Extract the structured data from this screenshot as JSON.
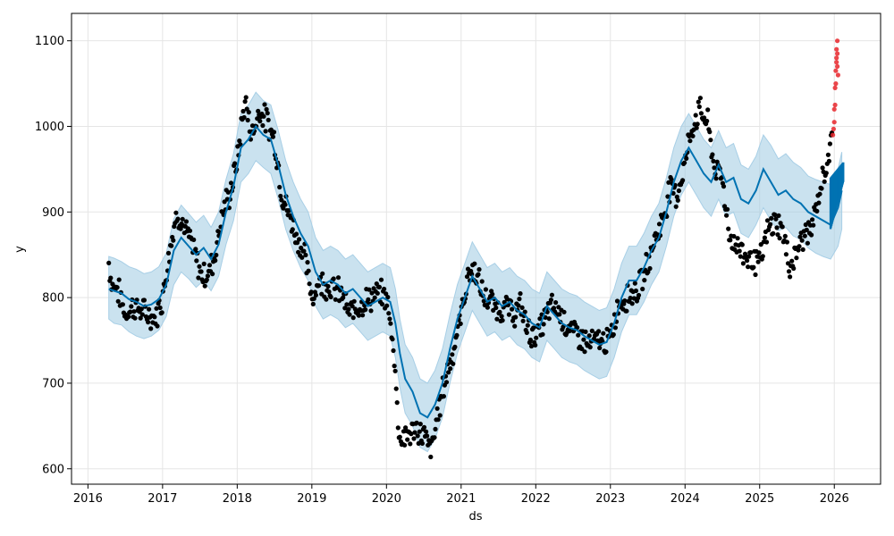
{
  "chart_data": {
    "type": "line",
    "title": "",
    "xlabel": "ds",
    "ylabel": "y",
    "xlim": [
      2015.78,
      2026.62
    ],
    "ylim": [
      582,
      1132
    ],
    "grid": true,
    "x_ticks": [
      2016,
      2017,
      2018,
      2019,
      2020,
      2021,
      2022,
      2023,
      2024,
      2025,
      2026
    ],
    "x_tick_labels": [
      "2016",
      "2017",
      "2018",
      "2019",
      "2020",
      "2021",
      "2022",
      "2023",
      "2024",
      "2025",
      "2026"
    ],
    "y_ticks": [
      600,
      700,
      800,
      900,
      1000,
      1100
    ],
    "y_tick_labels": [
      "600",
      "700",
      "800",
      "900",
      "1000",
      "1100"
    ],
    "colors": {
      "forecast_line": "#0072B2",
      "uncertainty_band": "#9ecae1",
      "observed_points": "#000000",
      "outlier_points": "#e8262b"
    },
    "forecast": {
      "x": [
        2016.28,
        2016.35,
        2016.45,
        2016.55,
        2016.65,
        2016.75,
        2016.85,
        2016.95,
        2017.05,
        2017.15,
        2017.25,
        2017.35,
        2017.45,
        2017.55,
        2017.65,
        2017.75,
        2017.85,
        2017.95,
        2018.05,
        2018.15,
        2018.25,
        2018.35,
        2018.45,
        2018.55,
        2018.65,
        2018.75,
        2018.85,
        2018.95,
        2019.05,
        2019.15,
        2019.25,
        2019.35,
        2019.45,
        2019.55,
        2019.65,
        2019.75,
        2019.85,
        2019.95,
        2020.05,
        2020.12,
        2020.18,
        2020.25,
        2020.35,
        2020.45,
        2020.55,
        2020.65,
        2020.75,
        2020.85,
        2020.95,
        2021.05,
        2021.15,
        2021.25,
        2021.35,
        2021.45,
        2021.55,
        2021.65,
        2021.75,
        2021.85,
        2021.95,
        2022.05,
        2022.15,
        2022.25,
        2022.35,
        2022.45,
        2022.55,
        2022.65,
        2022.75,
        2022.85,
        2022.95,
        2023.05,
        2023.15,
        2023.25,
        2023.35,
        2023.45,
        2023.55,
        2023.65,
        2023.75,
        2023.85,
        2023.95,
        2024.05,
        2024.15,
        2024.25,
        2024.35,
        2024.45,
        2024.55,
        2024.65,
        2024.75,
        2024.85,
        2024.95,
        2025.05,
        2025.15,
        2025.25,
        2025.35,
        2025.45,
        2025.55,
        2025.65,
        2025.75,
        2025.85,
        2025.95,
        2026.05,
        2026.1
      ],
      "yhat": [
        810,
        808,
        805,
        798,
        795,
        790,
        792,
        798,
        815,
        855,
        870,
        860,
        850,
        858,
        845,
        862,
        900,
        930,
        975,
        985,
        1000,
        990,
        985,
        955,
        920,
        895,
        875,
        860,
        830,
        815,
        820,
        815,
        805,
        810,
        800,
        790,
        795,
        800,
        795,
        770,
        735,
        705,
        690,
        665,
        660,
        675,
        700,
        740,
        775,
        800,
        825,
        810,
        795,
        800,
        790,
        795,
        785,
        780,
        770,
        765,
        790,
        780,
        770,
        765,
        762,
        755,
        750,
        745,
        748,
        770,
        800,
        820,
        820,
        835,
        855,
        870,
        900,
        935,
        960,
        975,
        960,
        945,
        935,
        955,
        935,
        940,
        915,
        910,
        925,
        950,
        935,
        920,
        925,
        915,
        910,
        900,
        895,
        890,
        885,
        905,
        925
      ],
      "lower": [
        775,
        770,
        768,
        760,
        755,
        752,
        755,
        762,
        778,
        815,
        830,
        822,
        812,
        820,
        808,
        825,
        862,
        890,
        935,
        945,
        960,
        952,
        945,
        915,
        880,
        855,
        835,
        820,
        790,
        775,
        780,
        775,
        765,
        770,
        760,
        750,
        755,
        760,
        755,
        730,
        695,
        665,
        650,
        625,
        620,
        635,
        660,
        700,
        735,
        760,
        785,
        770,
        755,
        760,
        750,
        755,
        745,
        740,
        730,
        725,
        750,
        740,
        730,
        725,
        722,
        715,
        710,
        705,
        708,
        730,
        760,
        780,
        780,
        795,
        815,
        830,
        860,
        895,
        920,
        935,
        920,
        905,
        895,
        915,
        895,
        900,
        875,
        870,
        885,
        905,
        890,
        878,
        882,
        872,
        868,
        858,
        852,
        848,
        845,
        860,
        880
      ],
      "upper": [
        848,
        846,
        842,
        836,
        833,
        828,
        830,
        836,
        852,
        892,
        908,
        898,
        888,
        896,
        882,
        900,
        938,
        968,
        1015,
        1025,
        1040,
        1030,
        1025,
        995,
        960,
        935,
        915,
        900,
        870,
        855,
        860,
        855,
        845,
        850,
        840,
        830,
        835,
        840,
        835,
        810,
        775,
        745,
        730,
        705,
        700,
        715,
        740,
        780,
        815,
        840,
        865,
        850,
        835,
        840,
        830,
        835,
        825,
        820,
        810,
        805,
        830,
        820,
        810,
        805,
        802,
        795,
        790,
        785,
        788,
        810,
        840,
        860,
        860,
        875,
        895,
        910,
        940,
        975,
        1000,
        1015,
        1000,
        985,
        975,
        995,
        975,
        980,
        955,
        950,
        965,
        990,
        978,
        962,
        968,
        958,
        952,
        942,
        938,
        935,
        932,
        950,
        970
      ]
    },
    "observed_trend": {
      "x": [
        2016.28,
        2016.32,
        2016.4,
        2016.5,
        2016.6,
        2016.7,
        2016.8,
        2016.9,
        2017.0,
        2017.1,
        2017.2,
        2017.3,
        2017.4,
        2017.5,
        2017.6,
        2017.7,
        2017.8,
        2017.9,
        2018.0,
        2018.1,
        2018.2,
        2018.3,
        2018.4,
        2018.5,
        2018.6,
        2018.7,
        2018.8,
        2018.9,
        2019.0,
        2019.1,
        2019.2,
        2019.3,
        2019.4,
        2019.5,
        2019.6,
        2019.7,
        2019.8,
        2019.9,
        2020.0,
        2020.1,
        2020.15,
        2020.2,
        2020.25,
        2020.3,
        2020.4,
        2020.5,
        2020.6,
        2020.7,
        2020.8,
        2020.9,
        2021.0,
        2021.1,
        2021.2,
        2021.3,
        2021.4,
        2021.5,
        2021.6,
        2021.7,
        2021.8,
        2021.9,
        2022.0,
        2022.1,
        2022.2,
        2022.3,
        2022.4,
        2022.5,
        2022.6,
        2022.7,
        2022.8,
        2022.9,
        2023.0,
        2023.1,
        2023.2,
        2023.3,
        2023.4,
        2023.5,
        2023.6,
        2023.7,
        2023.8,
        2023.9,
        2024.0,
        2024.1,
        2024.2,
        2024.3,
        2024.4,
        2024.5,
        2024.6,
        2024.7,
        2024.8,
        2024.9,
        2025.0,
        2025.1,
        2025.2,
        2025.3,
        2025.4,
        2025.5,
        2025.6,
        2025.7,
        2025.8,
        2025.9,
        2025.98
      ],
      "y": [
        840,
        815,
        810,
        780,
        790,
        785,
        780,
        775,
        800,
        860,
        900,
        880,
        860,
        830,
        825,
        850,
        900,
        920,
        960,
        1030,
        990,
        1020,
        1005,
        985,
        920,
        895,
        870,
        850,
        800,
        820,
        815,
        810,
        805,
        780,
        790,
        795,
        800,
        805,
        800,
        740,
        660,
        630,
        640,
        640,
        645,
        640,
        620,
        670,
        710,
        740,
        780,
        830,
        830,
        800,
        795,
        785,
        790,
        780,
        790,
        760,
        755,
        770,
        790,
        785,
        770,
        760,
        755,
        745,
        750,
        748,
        750,
        790,
        800,
        805,
        815,
        840,
        870,
        890,
        930,
        920,
        960,
        1000,
        1020,
        1005,
        950,
        940,
        870,
        860,
        850,
        845,
        840,
        875,
        890,
        880,
        835,
        855,
        875,
        880,
        920,
        960,
        985
      ]
    },
    "observed_scatter_xspan": [
      2016.28,
      2025.98
    ],
    "outlier_points": {
      "x": [
        2025.98,
        2025.99,
        2026.0,
        2026.0,
        2026.01,
        2026.01,
        2026.02,
        2026.02,
        2026.03,
        2026.03,
        2026.03,
        2026.04,
        2026.04,
        2026.04,
        2026.05
      ],
      "y": [
        990,
        997,
        1005,
        1020,
        1025,
        1045,
        1050,
        1065,
        1075,
        1080,
        1090,
        1070,
        1085,
        1100,
        1060
      ]
    },
    "forecast_dense_block": {
      "x_start": 2025.95,
      "x_end": 2026.12,
      "y_low": [
        880,
        935
      ],
      "y_high": [
        940,
        958
      ]
    }
  }
}
